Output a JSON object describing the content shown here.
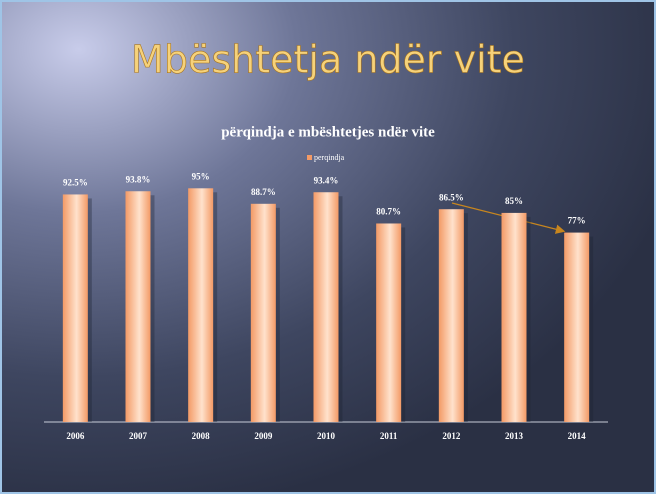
{
  "slide_title": "Mbështetja ndër vite",
  "chart_data": {
    "type": "bar",
    "title": "përqindja e mbështetjes  ndër vite",
    "categories": [
      "2006",
      "2007",
      "2008",
      "2009",
      "2010",
      "2011",
      "2012",
      "2013",
      "2014"
    ],
    "series": [
      {
        "name": "perqindja",
        "color": "#f39a66",
        "values": [
          92.5,
          93.8,
          95,
          88.7,
          93.4,
          80.7,
          86.5,
          85,
          77
        ],
        "value_labels": [
          "92.5%",
          "93.8%",
          "95%",
          "88.7%",
          "93.4%",
          "80.7%",
          "86.5%",
          "85%",
          "77%"
        ]
      }
    ]
  }
}
